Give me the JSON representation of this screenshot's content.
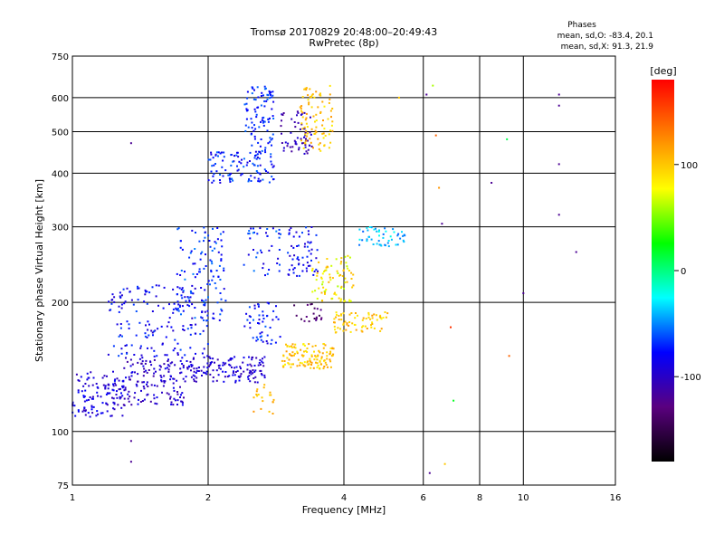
{
  "chart_data": {
    "type": "scatter",
    "title": "Tromsø 20170829 20:48:00–20:49:43",
    "subtitle": "RwPretec (8p)",
    "xlabel": "Frequency [MHz]",
    "ylabel": "Stationary phase Virtual Height [km]",
    "x_scale": "log",
    "y_scale": "log",
    "xlim": [
      1,
      16
    ],
    "ylim": [
      75,
      750
    ],
    "x_ticks": [
      "1",
      "2",
      "4",
      "6",
      "8",
      "10",
      "16"
    ],
    "y_ticks": [
      "75",
      "100",
      "200",
      "300",
      "400",
      "500",
      "600",
      "750"
    ],
    "grid": true,
    "legend": {
      "title": "Phases",
      "lines": [
        "mean, sd,O: -83.4, 20.1",
        "mean, sd,X:  91.3, 21.9"
      ]
    },
    "colorbar": {
      "label": "[deg]",
      "range": [
        -180,
        180
      ],
      "ticks": [
        "-100",
        "0",
        "100"
      ],
      "tick_values": [
        -100,
        0,
        100
      ],
      "colors": [
        "#000000",
        "#5a007f",
        "#0000ff",
        "#00ffff",
        "#00ff00",
        "#ffff00",
        "#ff8000",
        "#ff0000"
      ]
    },
    "clusters": [
      {
        "f": [
          1.0,
          1.3
        ],
        "h": [
          108,
          138
        ],
        "phase": [
          -110,
          -75
        ],
        "n": 120
      },
      {
        "f": [
          1.3,
          1.8
        ],
        "h": [
          115,
          150
        ],
        "phase": [
          -115,
          -80
        ],
        "n": 150
      },
      {
        "f": [
          1.8,
          2.7
        ],
        "h": [
          130,
          150
        ],
        "phase": [
          -110,
          -80
        ],
        "n": 140
      },
      {
        "f": [
          1.2,
          2.0
        ],
        "h": [
          150,
          220
        ],
        "phase": [
          -100,
          -60
        ],
        "n": 160
      },
      {
        "f": [
          1.7,
          2.2
        ],
        "h": [
          180,
          300
        ],
        "phase": [
          -90,
          -50
        ],
        "n": 120
      },
      {
        "f": [
          2.0,
          2.8
        ],
        "h": [
          380,
          450
        ],
        "phase": [
          -95,
          -55
        ],
        "n": 110
      },
      {
        "f": [
          2.4,
          2.8
        ],
        "h": [
          450,
          640
        ],
        "phase": [
          -85,
          -55
        ],
        "n": 90
      },
      {
        "f": [
          2.4,
          2.9
        ],
        "h": [
          230,
          300
        ],
        "phase": [
          -95,
          -50
        ],
        "n": 40
      },
      {
        "f": [
          2.4,
          2.9
        ],
        "h": [
          160,
          200
        ],
        "phase": [
          -95,
          -55
        ],
        "n": 50
      },
      {
        "f": [
          2.9,
          3.4
        ],
        "h": [
          440,
          560
        ],
        "phase": [
          -120,
          -90
        ],
        "n": 60
      },
      {
        "f": [
          3.2,
          3.8
        ],
        "h": [
          450,
          640
        ],
        "phase": [
          80,
          120
        ],
        "n": 90
      },
      {
        "f": [
          2.9,
          3.8
        ],
        "h": [
          140,
          160
        ],
        "phase": [
          80,
          120
        ],
        "n": 120
      },
      {
        "f": [
          3.0,
          3.5
        ],
        "h": [
          230,
          300
        ],
        "phase": [
          -100,
          -60
        ],
        "n": 60
      },
      {
        "f": [
          3.4,
          4.2
        ],
        "h": [
          200,
          260
        ],
        "phase": [
          60,
          110
        ],
        "n": 80
      },
      {
        "f": [
          3.8,
          5.0
        ],
        "h": [
          170,
          190
        ],
        "phase": [
          80,
          120
        ],
        "n": 70
      },
      {
        "f": [
          4.3,
          5.5
        ],
        "h": [
          270,
          300
        ],
        "phase": [
          -60,
          -20
        ],
        "n": 50
      },
      {
        "f": [
          2.5,
          2.8
        ],
        "h": [
          110,
          130
        ],
        "phase": [
          90,
          120
        ],
        "n": 20
      },
      {
        "f": [
          3.1,
          3.6
        ],
        "h": [
          180,
          200
        ],
        "phase": [
          -150,
          -120
        ],
        "n": 20
      }
    ],
    "outliers": [
      {
        "f": 1.35,
        "h": 470,
        "phase": -120
      },
      {
        "f": 1.35,
        "h": 95,
        "phase": -120
      },
      {
        "f": 1.35,
        "h": 85,
        "phase": -120
      },
      {
        "f": 6.2,
        "h": 80,
        "phase": -120
      },
      {
        "f": 6.3,
        "h": 640,
        "phase": 60
      },
      {
        "f": 6.4,
        "h": 490,
        "phase": 140
      },
      {
        "f": 6.5,
        "h": 370,
        "phase": 120
      },
      {
        "f": 6.6,
        "h": 305,
        "phase": -120
      },
      {
        "f": 6.7,
        "h": 84,
        "phase": 100
      },
      {
        "f": 6.9,
        "h": 175,
        "phase": 160
      },
      {
        "f": 7.0,
        "h": 118,
        "phase": 20
      },
      {
        "f": 8.5,
        "h": 380,
        "phase": -120
      },
      {
        "f": 9.2,
        "h": 480,
        "phase": 10
      },
      {
        "f": 9.3,
        "h": 150,
        "phase": 140
      },
      {
        "f": 10.0,
        "h": 210,
        "phase": -120
      },
      {
        "f": 12.0,
        "h": 610,
        "phase": -120
      },
      {
        "f": 12.0,
        "h": 575,
        "phase": -120
      },
      {
        "f": 12.0,
        "h": 420,
        "phase": -120
      },
      {
        "f": 12.0,
        "h": 320,
        "phase": -120
      },
      {
        "f": 13.1,
        "h": 262,
        "phase": -120
      },
      {
        "f": 6.1,
        "h": 610,
        "phase": -120
      },
      {
        "f": 5.3,
        "h": 600,
        "phase": 100
      }
    ]
  }
}
